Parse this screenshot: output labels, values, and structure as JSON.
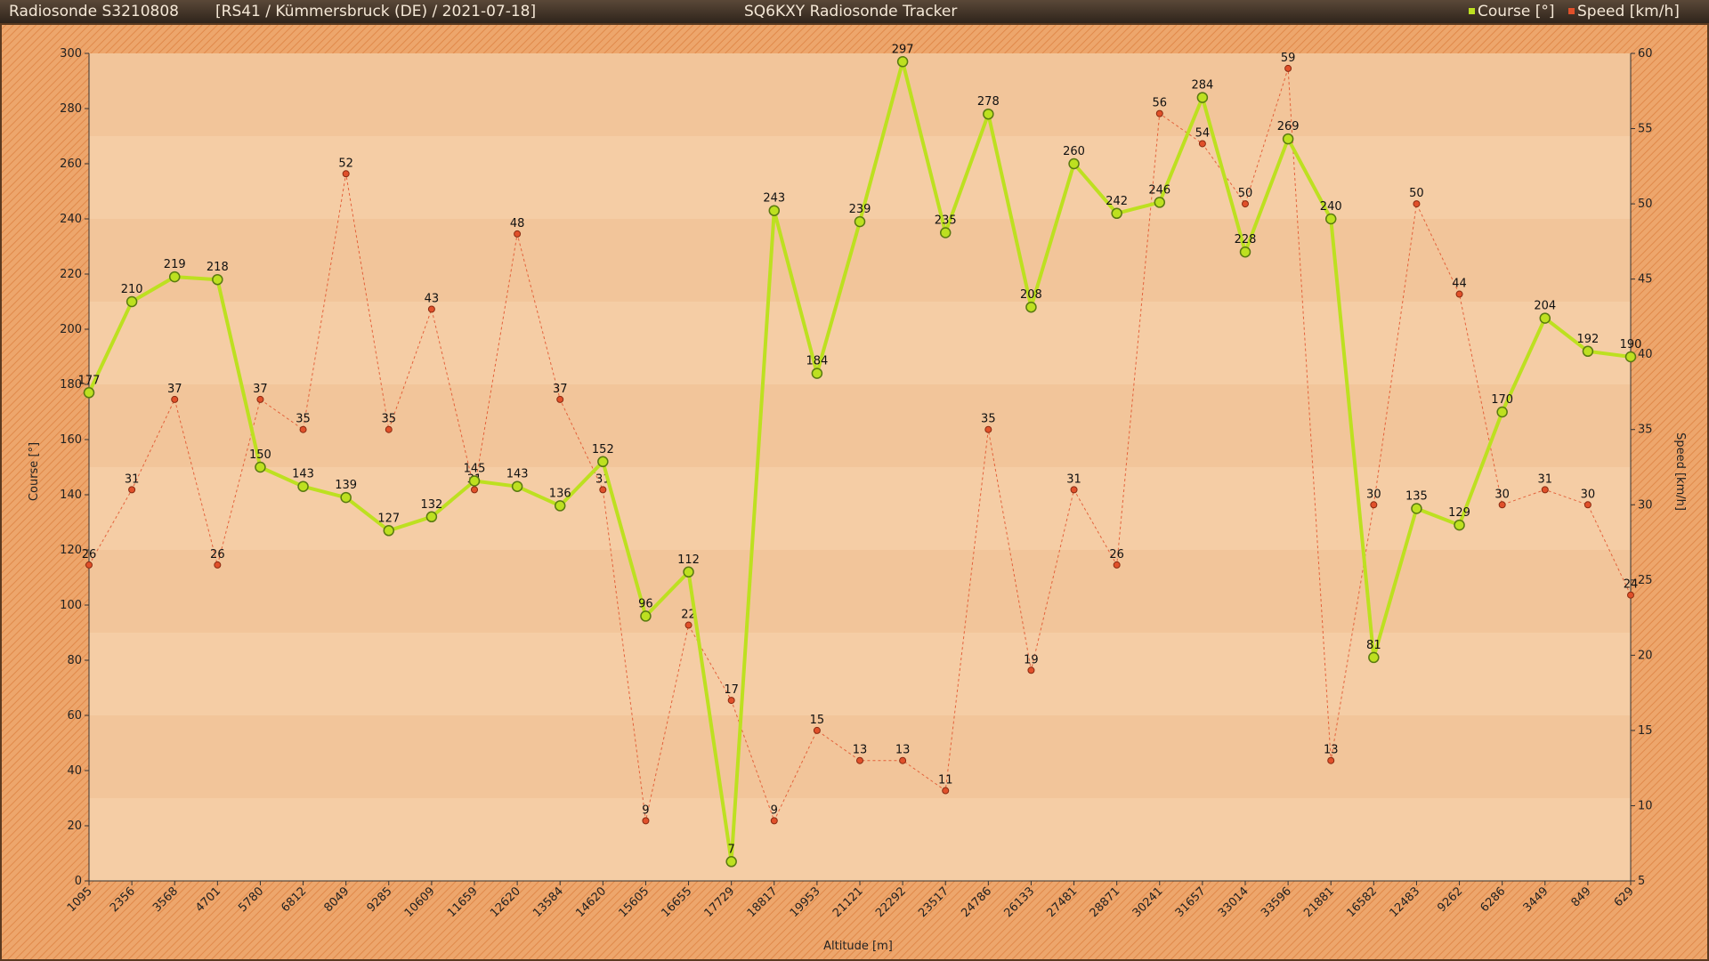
{
  "header": {
    "left_title": "Radiosonde S3210808",
    "info": "[RS41 / Kümmersbruck (DE) / 2021-07-18]",
    "app_title": "SQ6KXY Radiosonde Tracker",
    "legend": [
      {
        "label": "Course [°]",
        "color": "#bde020"
      },
      {
        "label": "Speed [km/h]",
        "color": "#e0502a"
      }
    ]
  },
  "chart_data": {
    "type": "line",
    "xlabel": "Altitude [m]",
    "ylabel": "Course [°]",
    "y2label": "Speed [km/h]",
    "ylim": [
      0,
      300
    ],
    "y2lim": [
      5,
      60
    ],
    "yticks": [
      0,
      20,
      40,
      60,
      80,
      100,
      120,
      140,
      160,
      180,
      200,
      220,
      240,
      260,
      280,
      300
    ],
    "y2ticks": [
      5,
      10,
      15,
      20,
      25,
      30,
      35,
      40,
      45,
      50,
      55,
      60
    ],
    "categories": [
      "1095",
      "2356",
      "3568",
      "4701",
      "5780",
      "6812",
      "8049",
      "9285",
      "10609",
      "11659",
      "12620",
      "13584",
      "14620",
      "15605",
      "16655",
      "17729",
      "18817",
      "19953",
      "21121",
      "22292",
      "23517",
      "24786",
      "26133",
      "27481",
      "28871",
      "30241",
      "31657",
      "33014",
      "33596",
      "21881",
      "16582",
      "12483",
      "9262",
      "6286",
      "3449",
      "849",
      "629"
    ],
    "series": [
      {
        "name": "Course [°]",
        "axis": "left",
        "color": "#bde020",
        "values": [
          177,
          210,
          219,
          218,
          150,
          143,
          139,
          127,
          132,
          145,
          143,
          136,
          152,
          96,
          112,
          7,
          243,
          184,
          239,
          297,
          235,
          278,
          208,
          260,
          242,
          246,
          284,
          228,
          269,
          240,
          81,
          135,
          129,
          170,
          204,
          192,
          190
        ]
      },
      {
        "name": "Speed [km/h]",
        "axis": "right",
        "color": "#e0502a",
        "values": [
          26,
          31,
          37,
          26,
          37,
          35,
          52,
          35,
          43,
          31,
          48,
          37,
          31,
          9,
          22,
          17,
          9,
          15,
          13,
          13,
          11,
          35,
          19,
          31,
          26,
          56,
          54,
          50,
          59,
          13,
          30,
          50,
          44,
          30,
          31,
          30,
          24
        ]
      }
    ]
  }
}
